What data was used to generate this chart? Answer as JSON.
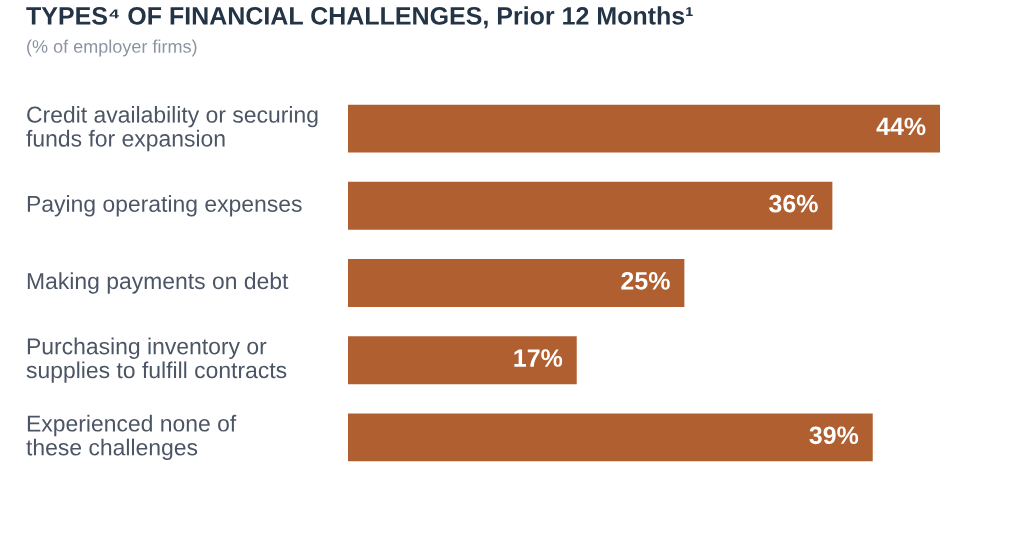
{
  "chart_data": {
    "type": "bar",
    "orientation": "horizontal",
    "title": "TYPES⁴ OF FINANCIAL CHALLENGES, Prior 12 Months¹",
    "subtitle": "(% of employer firms)",
    "categories": [
      "Credit availability or securing\nfunds for expansion",
      "Paying operating expenses",
      "Making payments on debt",
      "Purchasing inventory or\nsupplies to fulfill contracts",
      "Experienced none of\nthese challenges"
    ],
    "values": [
      44,
      36,
      25,
      17,
      39
    ],
    "color": "#b05f31",
    "value_labels": [
      "44%",
      "36%",
      "25%",
      "17%",
      "39%"
    ],
    "legend": false
  }
}
